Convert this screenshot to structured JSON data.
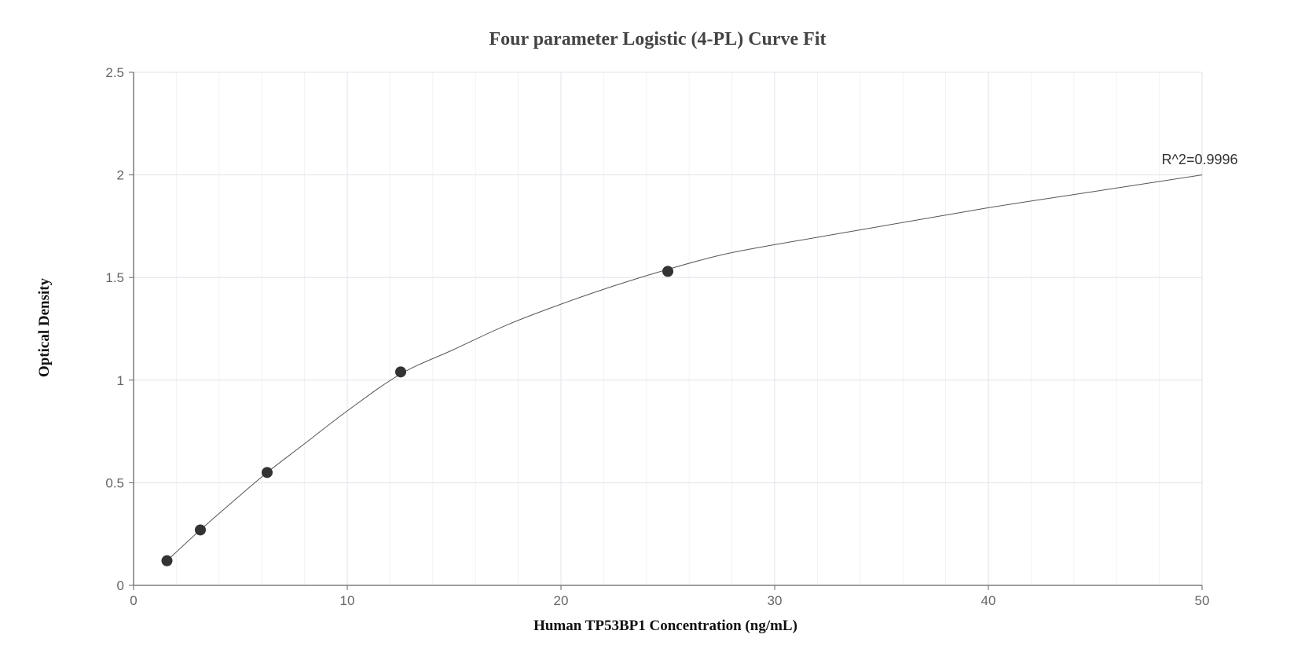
{
  "chart_data": {
    "type": "scatter",
    "title": "Four parameter Logistic (4-PL) Curve Fit",
    "xlabel": "Human TP53BP1 Concentration (ng/mL)",
    "ylabel": "Optical Density",
    "xlim": [
      0,
      50
    ],
    "ylim": [
      0,
      2.5
    ],
    "x_ticks": [
      "0",
      "10",
      "20",
      "30",
      "40",
      "50"
    ],
    "y_ticks": [
      "0",
      "0.5",
      "1",
      "1.5",
      "2",
      "2.5"
    ],
    "grid": true,
    "points": [
      {
        "x": 1.5625,
        "y": 0.12
      },
      {
        "x": 3.125,
        "y": 0.27
      },
      {
        "x": 6.25,
        "y": 0.55
      },
      {
        "x": 12.5,
        "y": 1.04
      },
      {
        "x": 25,
        "y": 1.53
      }
    ],
    "fit_curve": [
      {
        "x": 1.5625,
        "y": 0.12
      },
      {
        "x": 3.125,
        "y": 0.27
      },
      {
        "x": 5,
        "y": 0.44
      },
      {
        "x": 6.25,
        "y": 0.55
      },
      {
        "x": 8,
        "y": 0.69
      },
      {
        "x": 10,
        "y": 0.85
      },
      {
        "x": 12.5,
        "y": 1.03
      },
      {
        "x": 15,
        "y": 1.15
      },
      {
        "x": 17.5,
        "y": 1.27
      },
      {
        "x": 20,
        "y": 1.37
      },
      {
        "x": 22.5,
        "y": 1.46
      },
      {
        "x": 25,
        "y": 1.54
      },
      {
        "x": 27.5,
        "y": 1.61
      },
      {
        "x": 30,
        "y": 1.66
      },
      {
        "x": 35,
        "y": 1.75
      },
      {
        "x": 40,
        "y": 1.84
      },
      {
        "x": 45,
        "y": 1.92
      },
      {
        "x": 50,
        "y": 2.0
      }
    ],
    "annotation": "R^2=0.9996",
    "colors": {
      "points": "#333333",
      "curve": "#555555",
      "grid_major": "#e0e3ea",
      "grid_minor": "#f1f2f6",
      "axis": "#666666"
    }
  }
}
